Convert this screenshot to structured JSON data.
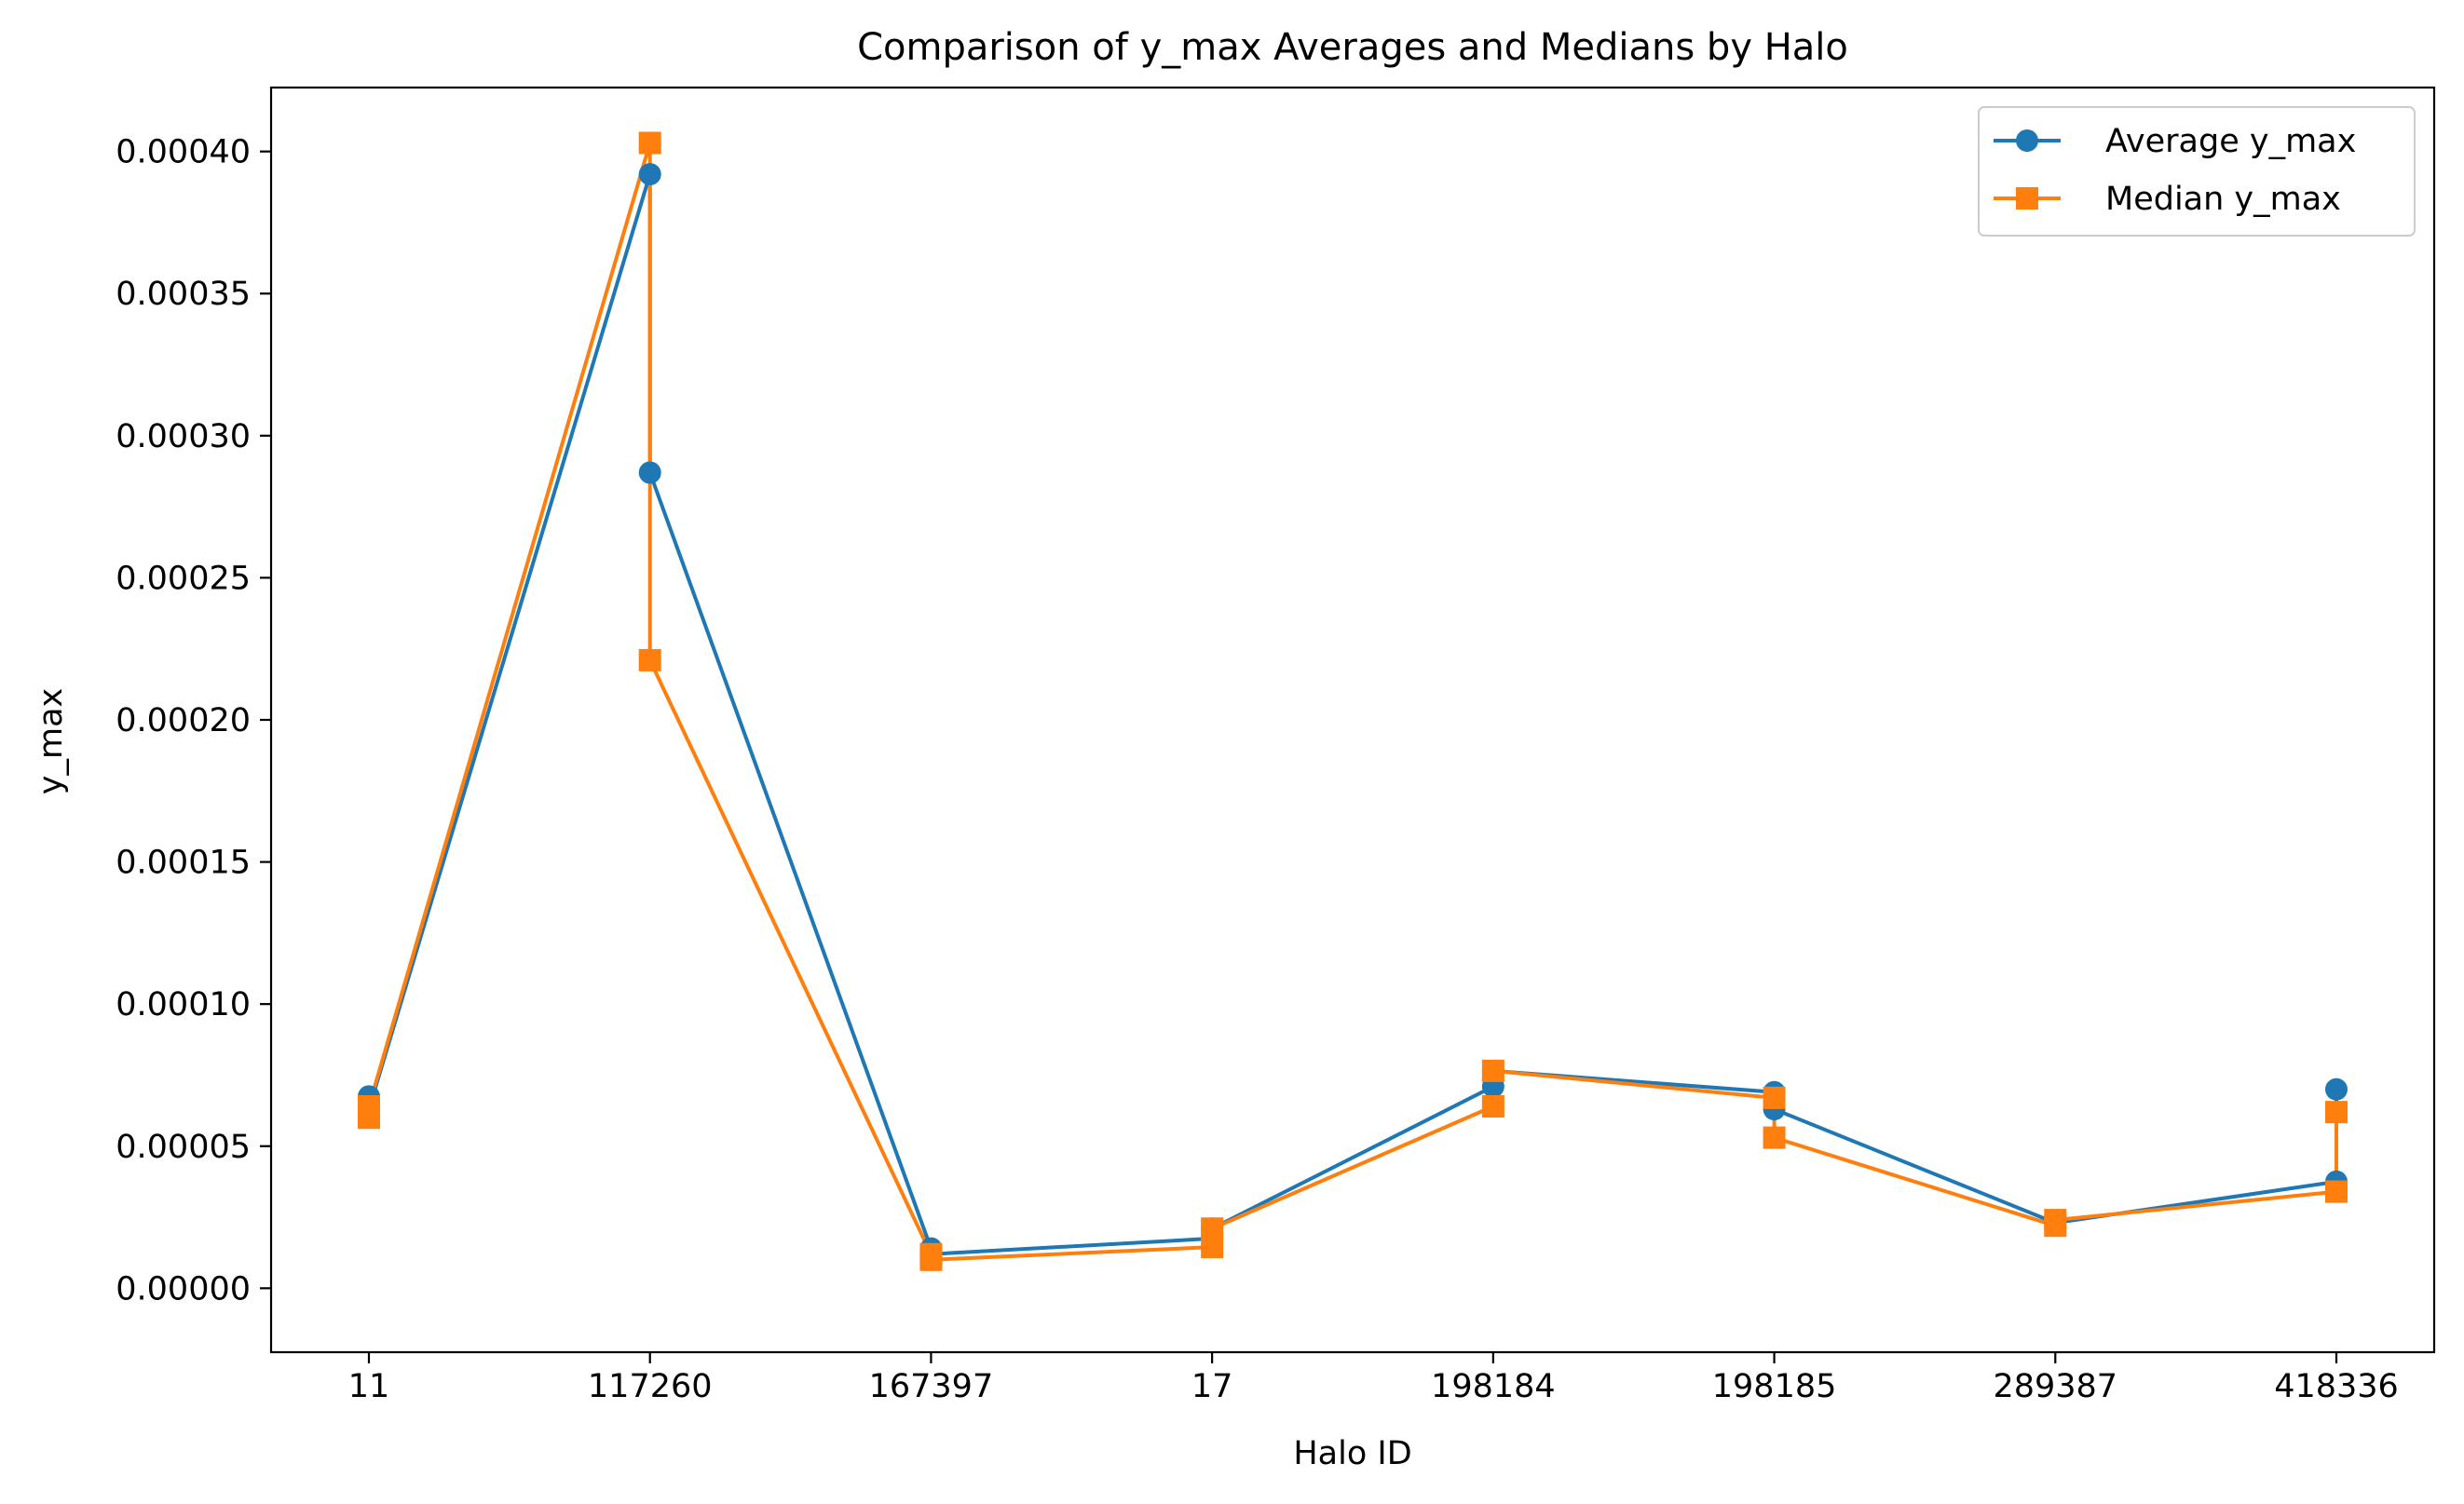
{
  "chart_data": {
    "type": "line",
    "title": "Comparison of y_max Averages and Medians by Halo",
    "xlabel": "Halo ID",
    "ylabel": "y_max",
    "categories": [
      "11",
      "117260",
      "167397",
      "17",
      "198184",
      "198185",
      "289387",
      "418336"
    ],
    "y_ticks": [
      "0.00000",
      "0.00005",
      "0.00010",
      "0.00015",
      "0.00020",
      "0.00025",
      "0.00030",
      "0.00035",
      "0.00040"
    ],
    "y_tick_values": [
      0,
      5e-05,
      0.0001,
      0.00015,
      0.0002,
      0.00025,
      0.0003,
      0.00035,
      0.0004
    ],
    "ylim": [
      -2.25e-05,
      0.0004225
    ],
    "grid": false,
    "legend_position": "upper right",
    "series": [
      {
        "name": "Average y_max",
        "color": "#1f77b4",
        "marker": "circle",
        "points": [
          {
            "x": "11",
            "y": 6.75e-05
          },
          {
            "x": "11",
            "y": 6.3e-05
          },
          {
            "x": "117260",
            "y": 0.000392
          },
          {
            "x": "117260",
            "y": 0.000287
          },
          {
            "x": "167397",
            "y": 1.4e-05
          },
          {
            "x": "167397",
            "y": 1.2e-05
          },
          {
            "x": "17",
            "y": 1.75e-05
          },
          {
            "x": "17",
            "y": 2.1e-05
          },
          {
            "x": "198184",
            "y": 7.1e-05
          },
          {
            "x": "198184",
            "y": 7.65e-05
          },
          {
            "x": "198185",
            "y": 6.9e-05
          },
          {
            "x": "198185",
            "y": 6.3e-05
          },
          {
            "x": "289387",
            "y": 2.3e-05
          },
          {
            "x": "289387",
            "y": 2.3e-05
          },
          {
            "x": "418336",
            "y": 3.75e-05
          },
          {
            "x": "418336",
            "y": 7e-05
          }
        ]
      },
      {
        "name": "Median y_max",
        "color": "#ff7f0e",
        "marker": "square",
        "points": [
          {
            "x": "11",
            "y": 6e-05
          },
          {
            "x": "11",
            "y": 6.4e-05
          },
          {
            "x": "117260",
            "y": 0.000403
          },
          {
            "x": "117260",
            "y": 0.000221
          },
          {
            "x": "167397",
            "y": 1.2e-05
          },
          {
            "x": "167397",
            "y": 1e-05
          },
          {
            "x": "17",
            "y": 1.45e-05
          },
          {
            "x": "17",
            "y": 2.1e-05
          },
          {
            "x": "198184",
            "y": 6.4e-05
          },
          {
            "x": "198184",
            "y": 7.65e-05
          },
          {
            "x": "198185",
            "y": 6.7e-05
          },
          {
            "x": "198185",
            "y": 5.3e-05
          },
          {
            "x": "289387",
            "y": 2.2e-05
          },
          {
            "x": "289387",
            "y": 2.4e-05
          },
          {
            "x": "418336",
            "y": 3.4e-05
          },
          {
            "x": "418336",
            "y": 6.2e-05
          }
        ]
      }
    ]
  }
}
